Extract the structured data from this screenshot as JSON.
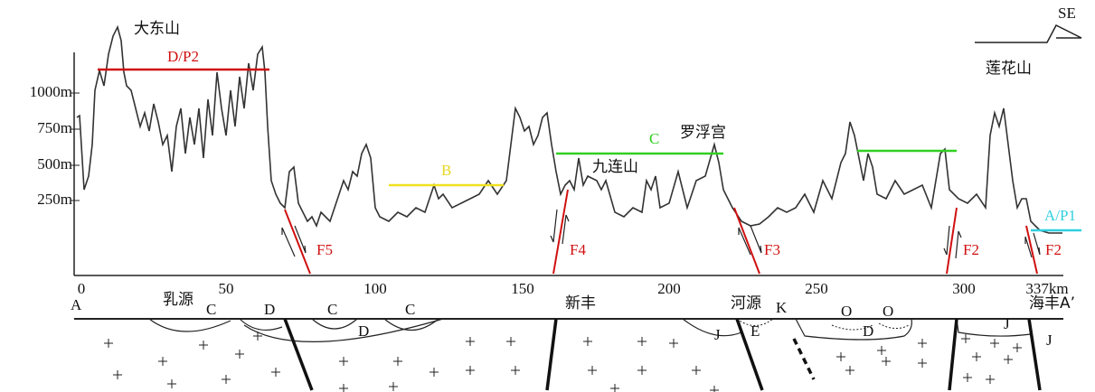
{
  "direction": "SE",
  "place_labels": [
    "大东山",
    "罗浮宫",
    "九连山",
    "莲花山"
  ],
  "units": [
    "D/P2",
    "B",
    "C",
    "A/P1"
  ],
  "faults": [
    "F5",
    "F4",
    "F3",
    "F2",
    "F2"
  ],
  "axis": {
    "y_ticks": [
      "1000m",
      "750m",
      "500m",
      "250m"
    ],
    "x_ticks": [
      "0",
      "50",
      "100",
      "150",
      "200",
      "250",
      "300",
      "337km"
    ]
  },
  "section_labels": [
    "A",
    "乳源",
    "C",
    "D",
    "C",
    "D",
    "C",
    "新丰",
    "河源",
    "J",
    "E",
    "K",
    "O",
    "O",
    "D",
    "J",
    "海丰A’",
    "J"
  ]
}
